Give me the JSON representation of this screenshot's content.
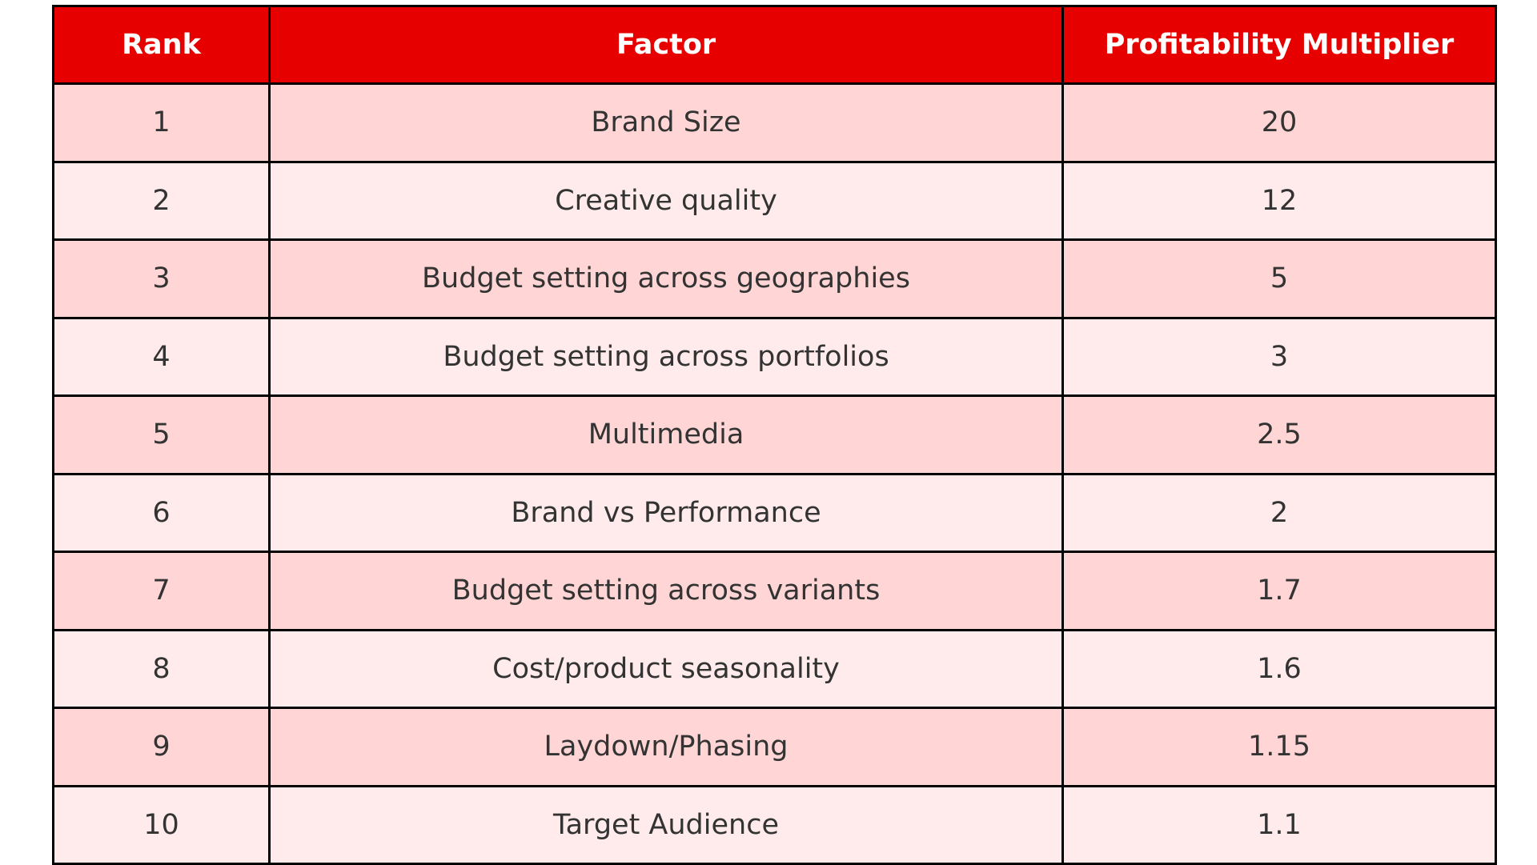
{
  "chart_data": {
    "type": "table",
    "columns": [
      "Rank",
      "Factor",
      "Profitability Multiplier"
    ],
    "rows": [
      [
        "1",
        "Brand Size",
        "20"
      ],
      [
        "2",
        "Creative quality",
        "12"
      ],
      [
        "3",
        "Budget setting across geographies",
        "5"
      ],
      [
        "4",
        "Budget setting across portfolios",
        "3"
      ],
      [
        "5",
        "Multimedia",
        "2.5"
      ],
      [
        "6",
        "Brand vs Performance",
        "2"
      ],
      [
        "7",
        "Budget setting across variants",
        "1.7"
      ],
      [
        "8",
        "Cost/product seasonality",
        "1.6"
      ],
      [
        "9",
        "Laydown/Phasing",
        "1.15"
      ],
      [
        "10",
        "Target Audience",
        "1.1"
      ]
    ]
  },
  "colors": {
    "header_bg": "#e60000",
    "header_text": "#ffffff",
    "row_odd_bg": "#ffd5d5",
    "row_even_bg": "#ffebeb",
    "cell_text": "#333333",
    "border": "#000000"
  }
}
